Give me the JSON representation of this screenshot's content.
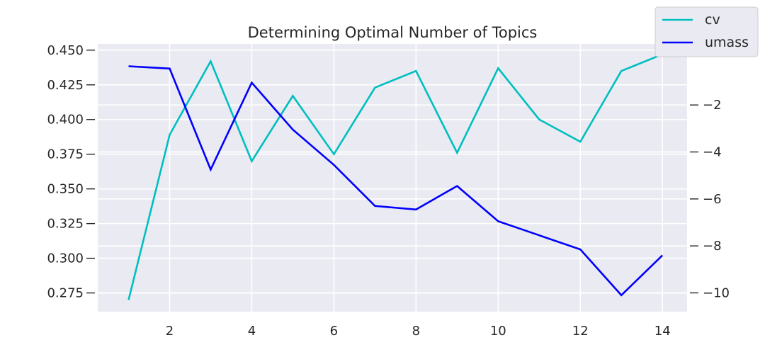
{
  "chart_data": {
    "type": "line",
    "title": "Determining Optimal Number of Topics",
    "xlabel": "",
    "ylabel": "",
    "x": [
      1,
      2,
      3,
      4,
      5,
      6,
      7,
      8,
      9,
      10,
      11,
      12,
      13,
      14
    ],
    "xlim": [
      0.25,
      14.6
    ],
    "x_ticks": [
      "2",
      "4",
      "6",
      "8",
      "10",
      "12",
      "14"
    ],
    "y_left_lim": [
      0.2615,
      0.4545
    ],
    "y_left_ticks": [
      "0.275",
      "0.300",
      "0.325",
      "0.350",
      "0.375",
      "0.400",
      "0.425",
      "0.450"
    ],
    "y_right_lim": [
      -10.8,
      0.6
    ],
    "y_right_ticks": [
      "−10",
      "−8",
      "−6",
      "−4",
      "−2"
    ],
    "grid": true,
    "legend_position": "top-right",
    "colors": {
      "cv": "#00bfbf",
      "umass": "#0000ff",
      "background": "#eaeaf2",
      "grid": "#ffffff"
    },
    "series": [
      {
        "name": "cv",
        "axis": "left",
        "values": [
          0.27,
          0.389,
          0.442,
          0.37,
          0.417,
          0.375,
          0.423,
          0.435,
          0.376,
          0.437,
          0.4,
          0.384,
          0.435,
          0.447
        ]
      },
      {
        "name": "umass",
        "axis": "right",
        "values": [
          -0.35,
          -0.45,
          -4.75,
          -1.05,
          -3.05,
          -4.55,
          -6.3,
          -6.45,
          -5.45,
          -6.95,
          -7.55,
          -8.15,
          -10.1,
          -8.4
        ]
      }
    ]
  }
}
